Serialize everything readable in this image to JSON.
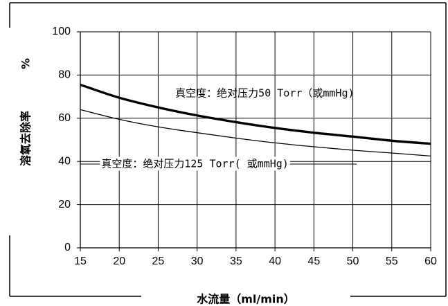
{
  "chart_data": {
    "type": "line",
    "xlabel": "水流量（ml/min）",
    "ylabel": "溶氧去除率",
    "ylabel_unit": "%",
    "xlim": [
      15,
      60
    ],
    "ylim": [
      0,
      100
    ],
    "x_ticks": [
      15,
      20,
      25,
      30,
      35,
      40,
      45,
      50,
      55,
      60
    ],
    "y_ticks": [
      0,
      20,
      40,
      60,
      80,
      100
    ],
    "grid": true,
    "legend": "none",
    "series": [
      {
        "key": "s50",
        "x": [
          15,
          20,
          25,
          30,
          35,
          40,
          45,
          50,
          55,
          60
        ],
        "values": [
          75.5,
          69.5,
          65.0,
          61.3,
          58.2,
          55.5,
          53.3,
          51.5,
          49.6,
          48.2
        ]
      },
      {
        "key": "s125",
        "x": [
          15,
          20,
          25,
          30,
          35,
          40,
          45,
          50,
          55,
          60
        ],
        "values": [
          64.0,
          59.5,
          56.0,
          53.3,
          50.8,
          48.6,
          46.8,
          45.2,
          43.9,
          42.5
        ]
      }
    ],
    "annotations": [
      {
        "series_key": "s50",
        "text": "真空度：绝对压力50 Torr（或mmHg)",
        "anchor_x": 27.2,
        "anchor_y": 71.5
      },
      {
        "series_key": "s125",
        "text": "真空度：绝对压力125 Torr( 或mmHg)",
        "anchor_x": 17.7,
        "anchor_y": 38.8
      }
    ]
  },
  "colors": {
    "background": "#ffffff",
    "grid": "#000000",
    "series_lines": "#000000"
  }
}
